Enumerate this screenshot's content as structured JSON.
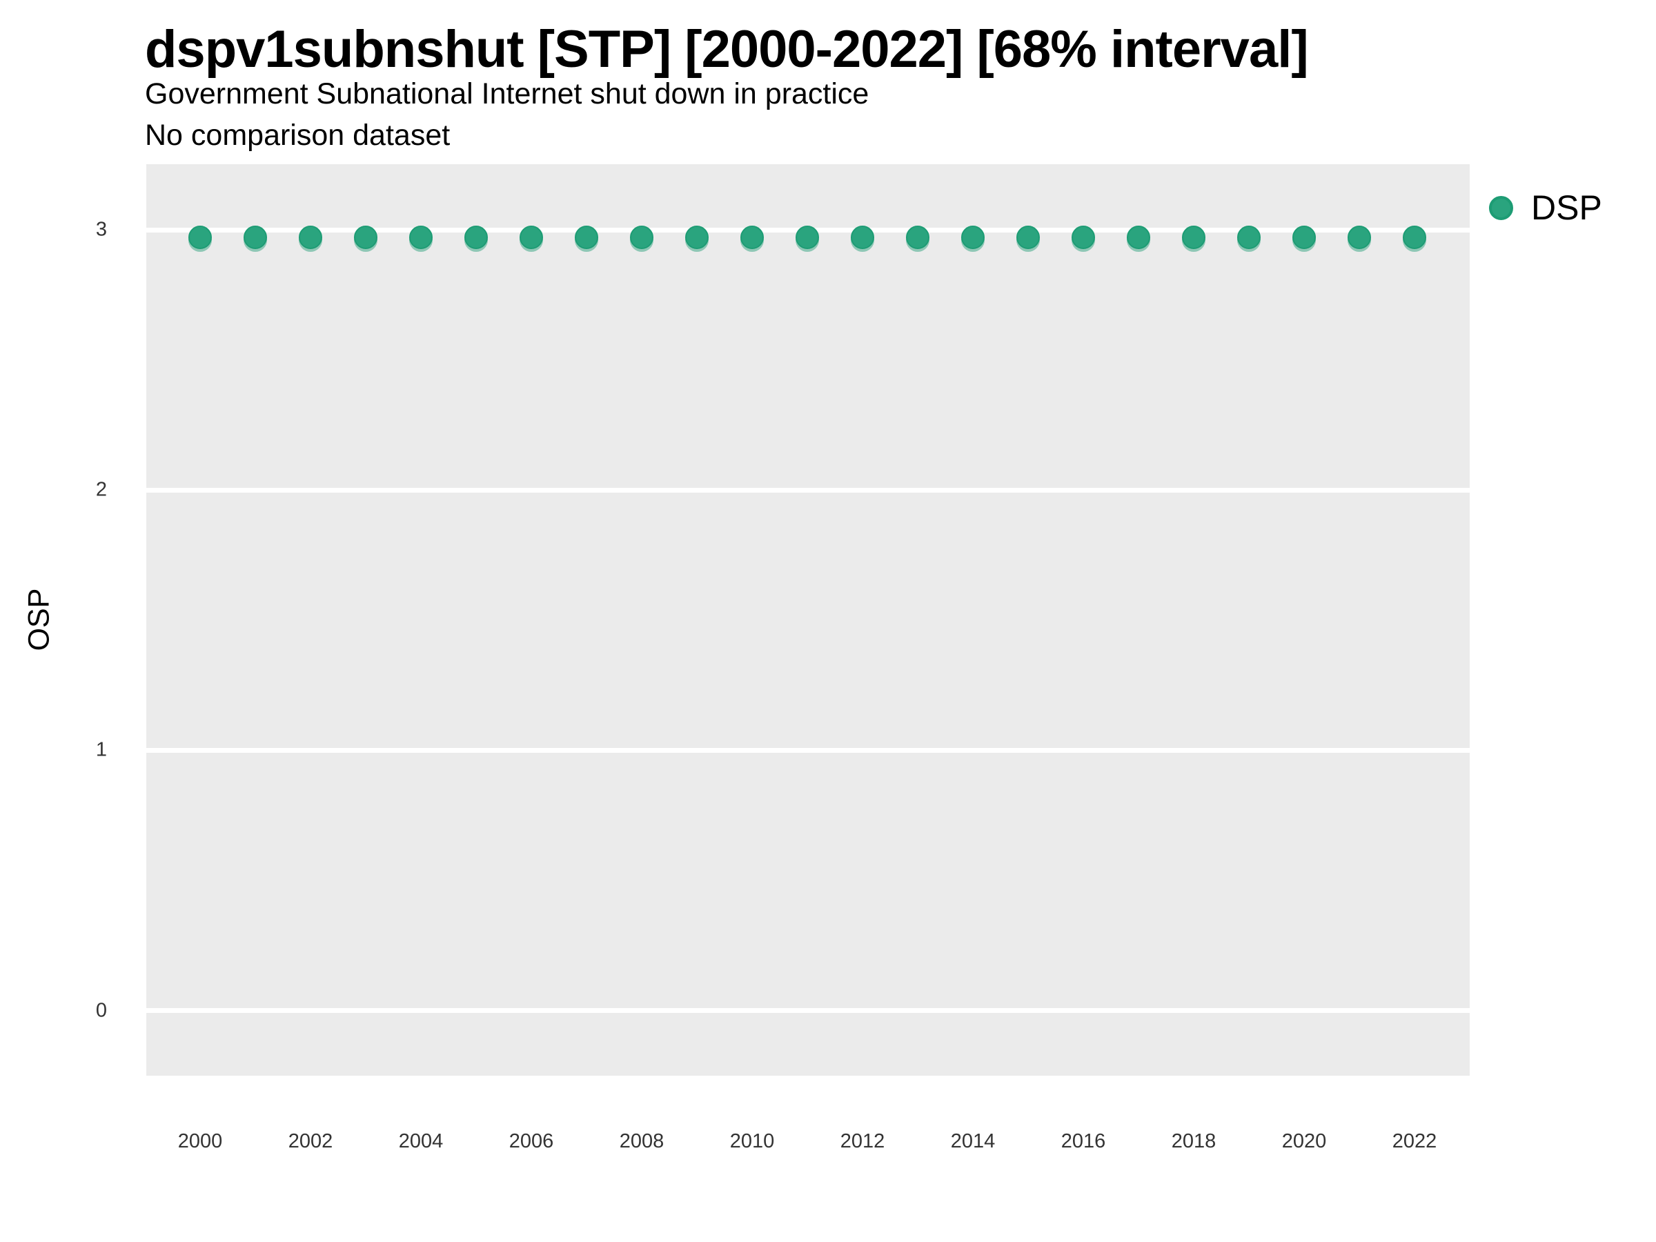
{
  "header": {
    "title": "dspv1subnshut [STP] [2000-2022] [68% interval]",
    "subtitle": "Government Subnational Internet shut down in practice",
    "caption": "No comparison dataset"
  },
  "axes": {
    "y_label": "OSP"
  },
  "legend": {
    "label": "DSP",
    "marker": "circle-icon"
  },
  "colors": {
    "point_fill": "#2aa47e",
    "point_stroke": "#1d9c74",
    "panel_background": "#ebebeb",
    "gridline": "#ffffff"
  },
  "chart_data": {
    "type": "scatter",
    "title": "dspv1subnshut [STP] [2000-2022] [68% interval]",
    "subtitle": "Government Subnational Internet shut down in practice",
    "caption": "No comparison dataset",
    "xlabel": "",
    "ylabel": "OSP",
    "xlim": [
      1999,
      2023
    ],
    "ylim": [
      -0.25,
      3.25
    ],
    "grid": "major-horizontal-white-on-gray",
    "legend_position": "right",
    "x_ticks": [
      2000,
      2002,
      2004,
      2006,
      2008,
      2010,
      2012,
      2014,
      2016,
      2018,
      2020,
      2022
    ],
    "y_ticks": [
      0,
      1,
      2,
      3
    ],
    "series": [
      {
        "name": "DSP",
        "x": [
          2000,
          2001,
          2002,
          2003,
          2004,
          2005,
          2006,
          2007,
          2008,
          2009,
          2010,
          2011,
          2012,
          2013,
          2014,
          2015,
          2016,
          2017,
          2018,
          2019,
          2020,
          2021,
          2022
        ],
        "y": [
          2.97,
          2.97,
          2.97,
          2.97,
          2.97,
          2.97,
          2.97,
          2.97,
          2.97,
          2.97,
          2.97,
          2.97,
          2.97,
          2.97,
          2.97,
          2.97,
          2.97,
          2.97,
          2.97,
          2.97,
          2.97,
          2.97,
          2.97
        ]
      }
    ]
  }
}
